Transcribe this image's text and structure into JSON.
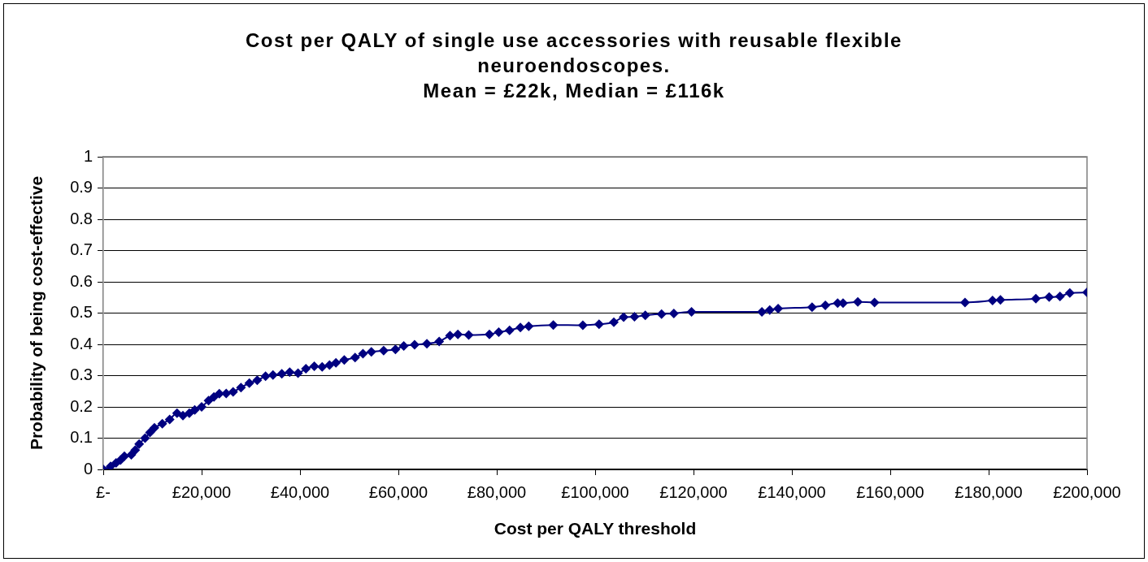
{
  "chart_data": {
    "type": "line",
    "title": "Cost per QALY of single use accessories with reusable flexible neuroendoscopes.",
    "subtitle": "Mean = £22k, Median = £116k",
    "xlabel": "Cost per QALY threshold",
    "ylabel": "Probability of being cost-effective",
    "x": [
      0,
      1500,
      2600,
      3500,
      4300,
      5700,
      6500,
      7300,
      8500,
      9500,
      10400,
      12000,
      13500,
      15000,
      16200,
      17500,
      18600,
      20000,
      21400,
      22500,
      23600,
      25000,
      26400,
      28000,
      29700,
      31300,
      33000,
      34500,
      36300,
      37900,
      39600,
      41200,
      42900,
      44500,
      46000,
      47300,
      49000,
      51200,
      52800,
      54500,
      57000,
      59400,
      61100,
      63300,
      65800,
      68300,
      70500,
      72100,
      74300,
      78500,
      80400,
      82600,
      84800,
      86500,
      91500,
      97500,
      100800,
      103800,
      105800,
      108000,
      110200,
      113500,
      116000,
      119600,
      133900,
      135500,
      137200,
      144100,
      146800,
      149300,
      150400,
      153400,
      156800,
      175200,
      180800,
      182400,
      189600,
      192300,
      194500,
      196500,
      200000
    ],
    "series": [
      {
        "color": "#000080",
        "values": [
          0,
          0.01,
          0.021,
          0.03,
          0.042,
          0.047,
          0.062,
          0.081,
          0.1,
          0.118,
          0.133,
          0.146,
          0.16,
          0.18,
          0.172,
          0.18,
          0.19,
          0.2,
          0.22,
          0.232,
          0.242,
          0.243,
          0.248,
          0.262,
          0.276,
          0.285,
          0.298,
          0.302,
          0.306,
          0.311,
          0.308,
          0.322,
          0.33,
          0.328,
          0.334,
          0.341,
          0.35,
          0.358,
          0.37,
          0.376,
          0.38,
          0.384,
          0.395,
          0.399,
          0.402,
          0.409,
          0.428,
          0.432,
          0.43,
          0.432,
          0.439,
          0.445,
          0.454,
          0.458,
          0.462,
          0.461,
          0.464,
          0.471,
          0.487,
          0.488,
          0.493,
          0.497,
          0.499,
          0.504,
          0.504,
          0.51,
          0.514,
          0.519,
          0.525,
          0.532,
          0.532,
          0.536,
          0.534,
          0.534,
          0.54,
          0.542,
          0.546,
          0.551,
          0.553,
          0.564,
          0.566
        ]
      }
    ],
    "xlim": [
      0,
      200000
    ],
    "xticks": [
      {
        "value": 0,
        "label": "£-"
      },
      {
        "value": 20000,
        "label": "£20,000"
      },
      {
        "value": 40000,
        "label": "£40,000"
      },
      {
        "value": 60000,
        "label": "£60,000"
      },
      {
        "value": 80000,
        "label": "£80,000"
      },
      {
        "value": 100000,
        "label": "£100,000"
      },
      {
        "value": 120000,
        "label": "£120,000"
      },
      {
        "value": 140000,
        "label": "£140,000"
      },
      {
        "value": 160000,
        "label": "£160,000"
      },
      {
        "value": 180000,
        "label": "£180,000"
      },
      {
        "value": 200000,
        "label": "£200,000"
      }
    ],
    "ylim": [
      0,
      1
    ],
    "yticks": [
      0,
      0.1,
      0.2,
      0.3,
      0.4,
      0.5,
      0.6,
      0.7,
      0.8,
      0.9,
      1
    ],
    "grid": "y",
    "legend": false,
    "marker": "diamond"
  }
}
